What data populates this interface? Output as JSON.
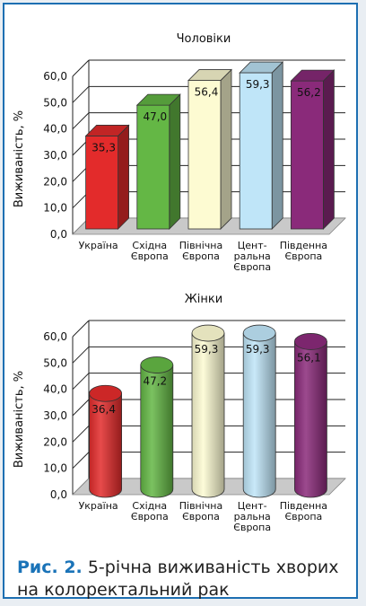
{
  "caption": {
    "label": "Рис. 2.",
    "text": "5-річна виживаність хворих на колоректальний рак"
  },
  "colors": [
    "#e32b2b",
    "#64b745",
    "#fdfbd2",
    "#bfe5f8",
    "#8a2a7a"
  ],
  "chart_data": [
    {
      "type": "bar",
      "style": "3d-box",
      "title": "Чоловіки",
      "ylabel": "Виживаність, %",
      "xlabel": "",
      "ylim": [
        0,
        60
      ],
      "yticks": [
        "0,0",
        "10,0",
        "20,0",
        "30,0",
        "40,0",
        "50,0",
        "60,0"
      ],
      "categories": [
        [
          "Україна"
        ],
        [
          "Східна",
          "Європа"
        ],
        [
          "Північна",
          "Європа"
        ],
        [
          "Цент-",
          "ральна",
          "Європа"
        ],
        [
          "Південна",
          "Європа"
        ]
      ],
      "values": [
        35.3,
        47.0,
        56.4,
        59.3,
        56.2
      ],
      "value_labels": [
        "35,3",
        "47,0",
        "56,4",
        "59,3",
        "56,2"
      ]
    },
    {
      "type": "bar",
      "style": "3d-cylinder",
      "title": "Жінки",
      "ylabel": "Виживаність, %",
      "xlabel": "",
      "ylim": [
        0,
        60
      ],
      "yticks": [
        "0,0",
        "10,0",
        "20,0",
        "30,0",
        "40,0",
        "50,0",
        "60,0"
      ],
      "categories": [
        [
          "Україна"
        ],
        [
          "Східна",
          "Європа"
        ],
        [
          "Північна",
          "Європа"
        ],
        [
          "Цент-",
          "ральна",
          "Європа"
        ],
        [
          "Південна",
          "Європа"
        ]
      ],
      "values": [
        36.4,
        47.2,
        59.3,
        59.3,
        56.1
      ],
      "value_labels": [
        "36,4",
        "47,2",
        "59,3",
        "59,3",
        "56,1"
      ]
    }
  ]
}
